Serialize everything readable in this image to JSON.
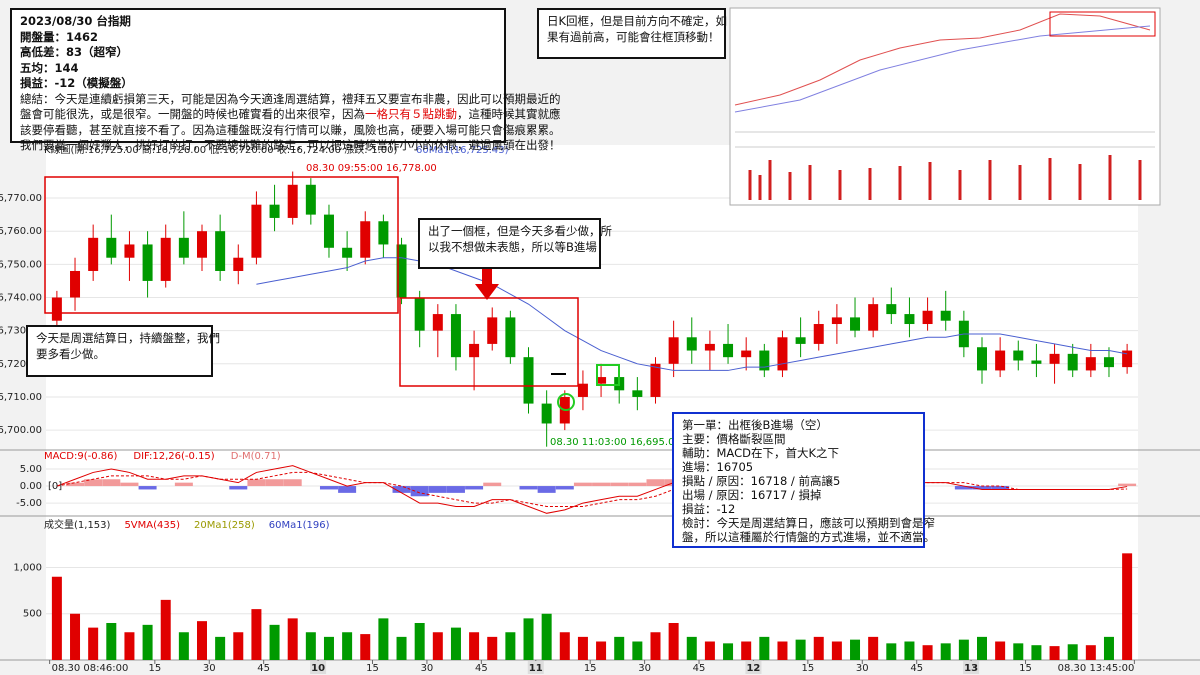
{
  "chart_data": {
    "type": "candlestick",
    "header": "K線圖(開:16,725.00 高:16,726.00 低:16,720.00 收:16,724.00 漲跌:-1.00)",
    "ma_label": "60Ma1(16,725.43)",
    "high_label": "08.30 09:55:00  16,778.00",
    "low_label": "08.30 11:03:00  16,695.00",
    "up_color": "#e00000",
    "down_color": "#009a00",
    "ma_color": "#4a5fd0",
    "xlim": [
      -1,
      300
    ],
    "xticks": [
      {
        "value": 0,
        "label": "08.30 08:46:00"
      },
      {
        "value": 29,
        "label": "15"
      },
      {
        "value": 44,
        "label": "30"
      },
      {
        "value": 59,
        "label": "45"
      },
      {
        "value": 74,
        "label": "10"
      },
      {
        "value": 89,
        "label": "15"
      },
      {
        "value": 104,
        "label": "30"
      },
      {
        "value": 119,
        "label": "45"
      },
      {
        "value": 134,
        "label": "11"
      },
      {
        "value": 149,
        "label": "15"
      },
      {
        "value": 164,
        "label": "30"
      },
      {
        "value": 179,
        "label": "45"
      },
      {
        "value": 194,
        "label": "12"
      },
      {
        "value": 209,
        "label": "15"
      },
      {
        "value": 224,
        "label": "30"
      },
      {
        "value": 239,
        "label": "45"
      },
      {
        "value": 254,
        "label": "13"
      },
      {
        "value": 269,
        "label": "15"
      },
      {
        "value": 299,
        "label": "08.30 13:45:00"
      }
    ],
    "ylim": [
      16694,
      16786
    ],
    "yticks": [
      {
        "value": 16700,
        "label": "16,700.00"
      },
      {
        "value": 16710,
        "label": "16,710.00"
      },
      {
        "value": 16720,
        "label": "16,720.00"
      },
      {
        "value": 16730,
        "label": "16,730.00"
      },
      {
        "value": 16740,
        "label": "16,740.00"
      },
      {
        "value": 16750,
        "label": "16,750.00"
      },
      {
        "value": 16760,
        "label": "16,760.00"
      },
      {
        "value": 16770,
        "label": "16,770.00"
      }
    ],
    "x": [
      2,
      7,
      12,
      17,
      22,
      27,
      32,
      37,
      42,
      47,
      52,
      57,
      62,
      67,
      72,
      77,
      82,
      87,
      92,
      97,
      102,
      107,
      112,
      117,
      122,
      127,
      132,
      137,
      142,
      147,
      152,
      157,
      162,
      167,
      172,
      177,
      182,
      187,
      192,
      197,
      202,
      207,
      212,
      217,
      222,
      227,
      232,
      237,
      242,
      247,
      252,
      257,
      262,
      267,
      272,
      277,
      282,
      287,
      292,
      297
    ],
    "ohlc": [
      [
        16733,
        16742,
        16728,
        16740
      ],
      [
        16740,
        16752,
        16736,
        16748
      ],
      [
        16748,
        16762,
        16745,
        16758
      ],
      [
        16758,
        16765,
        16750,
        16752
      ],
      [
        16752,
        16760,
        16745,
        16756
      ],
      [
        16756,
        16760,
        16740,
        16745
      ],
      [
        16745,
        16762,
        16743,
        16758
      ],
      [
        16758,
        16766,
        16750,
        16752
      ],
      [
        16752,
        16762,
        16748,
        16760
      ],
      [
        16760,
        16765,
        16745,
        16748
      ],
      [
        16748,
        16756,
        16744,
        16752
      ],
      [
        16752,
        16772,
        16750,
        16768
      ],
      [
        16768,
        16774,
        16760,
        16764
      ],
      [
        16764,
        16778,
        16762,
        16774
      ],
      [
        16774,
        16776,
        16762,
        16765
      ],
      [
        16765,
        16768,
        16752,
        16755
      ],
      [
        16755,
        16760,
        16748,
        16752
      ],
      [
        16752,
        16766,
        16750,
        16763
      ],
      [
        16763,
        16765,
        16752,
        16756
      ],
      [
        16756,
        16758,
        16738,
        16740
      ],
      [
        16740,
        16742,
        16725,
        16730
      ],
      [
        16730,
        16738,
        16722,
        16735
      ],
      [
        16735,
        16738,
        16718,
        16722
      ],
      [
        16722,
        16730,
        16712,
        16726
      ],
      [
        16726,
        16737,
        16724,
        16734
      ],
      [
        16734,
        16736,
        16720,
        16722
      ],
      [
        16722,
        16725,
        16705,
        16708
      ],
      [
        16708,
        16712,
        16695,
        16702
      ],
      [
        16702,
        16712,
        16700,
        16710
      ],
      [
        16710,
        16718,
        16706,
        16714
      ],
      [
        16714,
        16720,
        16710,
        16716
      ],
      [
        16716,
        16718,
        16708,
        16712
      ],
      [
        16712,
        16716,
        16706,
        16710
      ],
      [
        16710,
        16722,
        16708,
        16720
      ],
      [
        16720,
        16733,
        16716,
        16728
      ],
      [
        16728,
        16734,
        16720,
        16724
      ],
      [
        16724,
        16730,
        16718,
        16726
      ],
      [
        16726,
        16732,
        16720,
        16722
      ],
      [
        16722,
        16728,
        16718,
        16724
      ],
      [
        16724,
        16726,
        16716,
        16718
      ],
      [
        16718,
        16730,
        16716,
        16728
      ],
      [
        16728,
        16734,
        16722,
        16726
      ],
      [
        16726,
        16736,
        16724,
        16732
      ],
      [
        16732,
        16738,
        16726,
        16734
      ],
      [
        16734,
        16740,
        16728,
        16730
      ],
      [
        16730,
        16740,
        16728,
        16738
      ],
      [
        16738,
        16743,
        16732,
        16735
      ],
      [
        16735,
        16740,
        16728,
        16732
      ],
      [
        16732,
        16740,
        16730,
        16736
      ],
      [
        16736,
        16742,
        16730,
        16733
      ],
      [
        16733,
        16736,
        16722,
        16725
      ],
      [
        16725,
        16728,
        16714,
        16718
      ],
      [
        16718,
        16728,
        16716,
        16724
      ],
      [
        16724,
        16727,
        16718,
        16721
      ],
      [
        16721,
        16726,
        16716,
        16720
      ],
      [
        16720,
        16726,
        16714,
        16723
      ],
      [
        16723,
        16726,
        16716,
        16718
      ],
      [
        16718,
        16726,
        16716,
        16722
      ],
      [
        16722,
        16725,
        16716,
        16719
      ],
      [
        16719,
        16726,
        16717,
        16724
      ]
    ],
    "ma": [
      null,
      null,
      null,
      null,
      null,
      null,
      null,
      null,
      null,
      null,
      null,
      16744,
      16745,
      16746,
      16747,
      16748,
      16749,
      16751,
      16752,
      16752,
      16751,
      16750,
      16748,
      16746,
      16744,
      16741,
      16738,
      16734,
      16730,
      16727,
      16724,
      16722,
      16720,
      16719,
      16718,
      16718,
      16718,
      16718,
      16719,
      16719,
      16720,
      16721,
      16722,
      16723,
      16724,
      16725,
      16726,
      16727,
      16728,
      16728,
      16729,
      16729,
      16729,
      16728,
      16727,
      16726,
      16725,
      16724,
      16724,
      16723
    ],
    "macd": {
      "legend": [
        "MACD:9(-0.86)",
        "DIF:12,26(-0.15)",
        "D-M(0.71)"
      ],
      "zero_label": "[0]",
      "ylim": [
        -8.5,
        10
      ],
      "yticks": [
        {
          "value": -5,
          "label": "-5.00"
        },
        {
          "value": 0,
          "label": "0.00"
        },
        {
          "value": 5,
          "label": "5.00"
        }
      ],
      "dif": [
        0,
        2,
        4,
        5,
        4,
        2,
        2,
        3,
        3,
        2,
        1,
        4,
        5,
        6,
        4,
        2,
        0,
        1,
        1,
        -2,
        -5,
        -5,
        -6,
        -6,
        -4,
        -4,
        -6,
        -8,
        -7,
        -5,
        -4,
        -3,
        -3,
        -1,
        1,
        2,
        2,
        1,
        1,
        0,
        1,
        1,
        2,
        2,
        2,
        2,
        2,
        1,
        1,
        1,
        0,
        -1,
        -1,
        -1,
        -1,
        -1,
        -1,
        -1,
        -1,
        -0.15
      ],
      "signal": [
        0,
        1,
        2,
        3,
        3,
        3,
        2,
        2,
        3,
        2,
        2,
        2,
        3,
        4,
        4,
        3,
        2,
        1,
        1,
        0,
        -2,
        -3,
        -4,
        -5,
        -5,
        -4,
        -5,
        -6,
        -6,
        -6,
        -5,
        -4,
        -4,
        -3,
        -1,
        0,
        1,
        1,
        1,
        1,
        1,
        1,
        1,
        2,
        2,
        2,
        2,
        2,
        1,
        1,
        1,
        0,
        0,
        -1,
        -1,
        -1,
        -1,
        -1,
        -1,
        -0.86
      ],
      "hist": [
        0,
        1,
        2,
        2,
        1,
        -1,
        0,
        1,
        0,
        0,
        -1,
        2,
        2,
        2,
        0,
        -1,
        -2,
        0,
        0,
        -2,
        -3,
        -2,
        -2,
        -1,
        1,
        0,
        -1,
        -2,
        -1,
        1,
        1,
        1,
        1,
        2,
        2,
        2,
        1,
        0,
        0,
        -1,
        0,
        0,
        1,
        0,
        0,
        0,
        0,
        -1,
        0,
        0,
        -1,
        -1,
        -1,
        0,
        0,
        0,
        0,
        0,
        0,
        0.71
      ]
    },
    "volume": {
      "legend": [
        "成交量(1,153)",
        "5VMA(435)",
        "20Ma1(258)",
        "60Ma1(196)"
      ],
      "ylim": [
        0,
        1535
      ],
      "yticks": [
        500,
        {
          "value": 1000,
          "label": "1,000"
        }
      ],
      "values": [
        900,
        500,
        350,
        400,
        300,
        380,
        650,
        300,
        420,
        250,
        300,
        550,
        380,
        450,
        300,
        250,
        300,
        280,
        450,
        250,
        400,
        300,
        350,
        300,
        250,
        300,
        450,
        500,
        300,
        250,
        200,
        250,
        200,
        300,
        400,
        250,
        200,
        180,
        200,
        250,
        200,
        220,
        250,
        200,
        220,
        250,
        180,
        200,
        160,
        180,
        220,
        250,
        200,
        180,
        160,
        150,
        170,
        160,
        250,
        1153
      ]
    }
  },
  "notes": {
    "summary": [
      "2023/08/30 台指期",
      "開盤量：1462",
      "高低差：83（超窄）",
      "五均：144",
      "損益：-12（模擬盤）",
      "總結：今天是連續虧損第三天，可能是因為今天適逢周選結算，禮拜五又要宣布非農，因此可以預期最近的"
    ],
    "summary_mid": [
      "盤會可能很洗，或是很窄。一開盤的時候也確實看的出來很窄，因為",
      "一格只有５點跳動",
      "，這種時候其實就應"
    ],
    "summary_end": [
      "該要停看聽，甚至就直接不看了。因為這種盤既沒有行情可以賺，風險也高，硬要入場可能只會傷痕累累。",
      "我們要當一個好獵人，挑好打的打，不要總挑難的路走，可以把這時候當作小小的休假，避過風頭在出發！"
    ],
    "daily": [
      "日K回框，但是目前方向不確定，如",
      "果有過前高，可能會往框頂移動！"
    ],
    "frame": [
      "出了一個框，但是今天多看少做，所",
      "以我不想做未表態，所以等B進場"
    ],
    "today": [
      "今天是周選結算日，持續盤整，我們",
      "要多看少做。"
    ],
    "trade": [
      "第一單：出框後B進場（空）",
      "主要：價格斷裂區間",
      "輔助：MACD在下，首大K之下",
      "進場：16705",
      "損點 / 原因：16718 / 前高讓5",
      "出場 / 原因：16717 / 損掉",
      "損益：-12",
      "檢討：今天是周選結算日，應該可以預期到會是窄",
      "盤，所以這種屬於行情盤的方式進場，並不適當。"
    ]
  }
}
